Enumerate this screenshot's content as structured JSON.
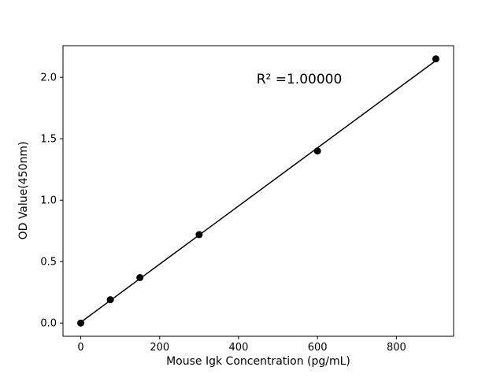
{
  "chart_data": {
    "type": "scatter",
    "title": "",
    "xlabel": "Mouse Igk Concentration (pg/mL)",
    "ylabel": "OD Value(450nm)",
    "x": [
      0,
      75,
      150,
      300,
      600,
      900
    ],
    "y": [
      0.0,
      0.19,
      0.37,
      0.72,
      1.4,
      2.15
    ],
    "annotation": "R² =1.00000",
    "xlim": [
      -45,
      945
    ],
    "ylim": [
      -0.1075,
      2.2575
    ],
    "xticks": [
      0,
      200,
      400,
      600,
      800
    ],
    "yticks": [
      0.0,
      0.5,
      1.0,
      1.5,
      2.0
    ],
    "grid": false,
    "legend": "none",
    "line_style": "linear-fit",
    "marker": "circle",
    "marker_color": "#000000",
    "line_color": "#000000",
    "axis_color": "#000000",
    "background": "#ffffff"
  }
}
